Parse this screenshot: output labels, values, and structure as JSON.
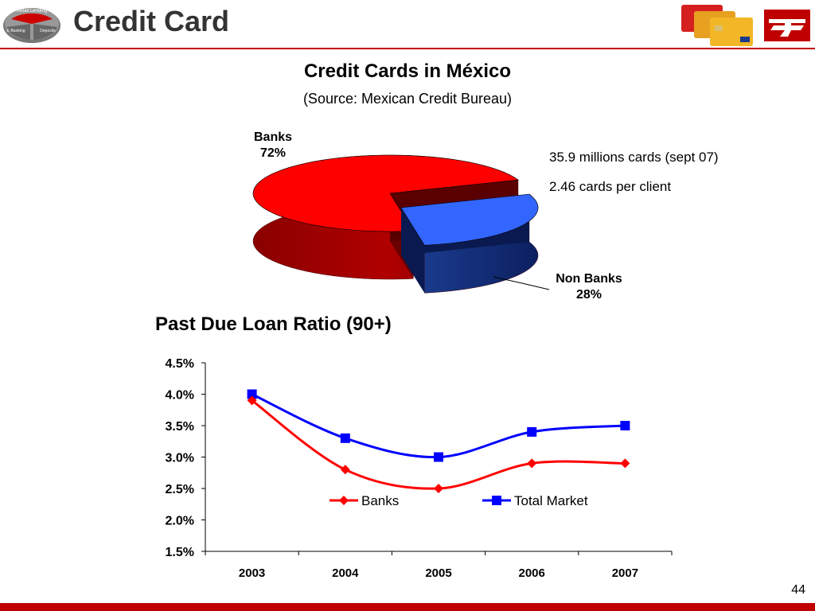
{
  "header": {
    "title": "Credit Card",
    "badge_labels": [
      "Retail Lending",
      "E-Banking",
      "Deposits"
    ],
    "page_number": "44"
  },
  "colors": {
    "brand_red": "#c00000",
    "banks_red": "#ff0000",
    "nonbanks_blue": "#3366ff",
    "line_banks": "#ff0000",
    "line_total": "#0000ff"
  },
  "pie_section": {
    "title": "Credit Cards in México",
    "subtitle": "(Source: Mexican Credit Bureau)",
    "stats": [
      "35.9 millions cards (sept 07)",
      "2.46 cards per client"
    ]
  },
  "line_section": {
    "title": "Past Due Loan Ratio (90+)"
  },
  "chart_data": [
    {
      "type": "pie",
      "title": "Credit Cards in México",
      "subtitle": "(Source: Mexican Credit Bureau)",
      "categories": [
        "Banks",
        "Non Banks"
      ],
      "values": [
        72,
        28
      ],
      "labels": [
        "72%",
        "28%"
      ]
    },
    {
      "type": "line",
      "title": "Past Due Loan Ratio (90+)",
      "categories": [
        "2003",
        "2004",
        "2005",
        "2006",
        "2007"
      ],
      "series": [
        {
          "name": "Banks",
          "values": [
            3.9,
            2.8,
            2.5,
            2.9,
            2.9
          ],
          "color": "#ff0000",
          "marker": "diamond"
        },
        {
          "name": "Total Market",
          "values": [
            4.0,
            3.3,
            3.0,
            3.4,
            3.5
          ],
          "color": "#0000ff",
          "marker": "square"
        }
      ],
      "ylim": [
        1.5,
        4.5
      ],
      "yticks": [
        "1.5%",
        "2.0%",
        "2.5%",
        "3.0%",
        "3.5%",
        "4.0%",
        "4.5%"
      ],
      "grid": false,
      "legend": "inside-center"
    }
  ]
}
